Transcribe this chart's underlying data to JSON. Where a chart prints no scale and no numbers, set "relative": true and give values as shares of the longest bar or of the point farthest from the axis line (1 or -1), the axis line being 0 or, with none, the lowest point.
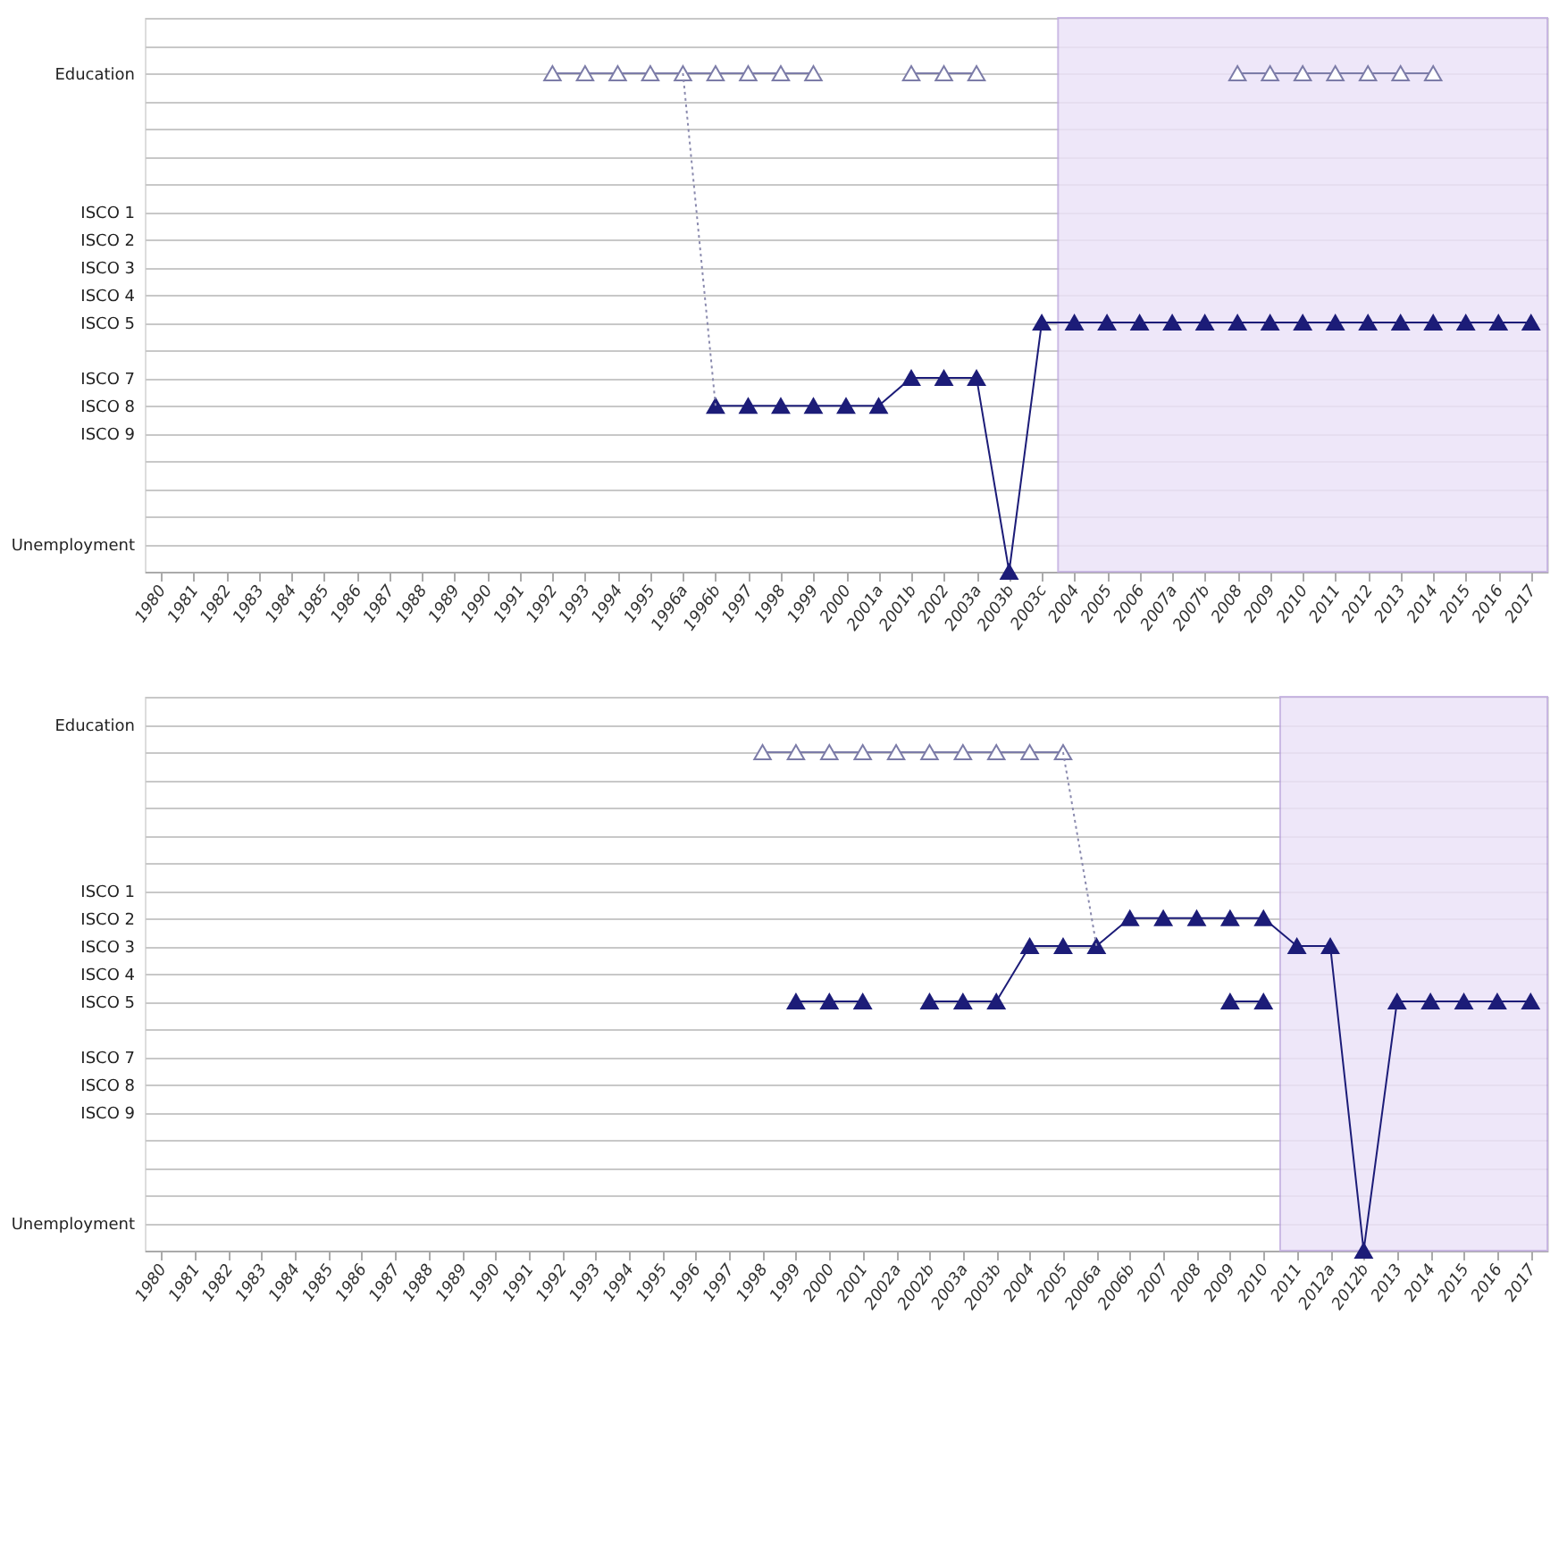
{
  "chart_data": [
    {
      "type": "line",
      "relative": true,
      "categories": [
        "1980",
        "1981",
        "1982",
        "1983",
        "1984",
        "1985",
        "1986",
        "1987",
        "1988",
        "1989",
        "1990",
        "1991",
        "1992",
        "1993",
        "1994",
        "1995",
        "1996a",
        "1996b",
        "1997",
        "1998",
        "1999",
        "2000",
        "2001a",
        "2001b",
        "2002",
        "2003a",
        "2003b",
        "2003c",
        "2004",
        "2005",
        "2006",
        "2007a",
        "2007b",
        "2008",
        "2009",
        "2010",
        "2011",
        "2012",
        "2013",
        "2014",
        "2015",
        "2016",
        "2017"
      ],
      "y_categories": [
        null,
        null,
        "Education",
        null,
        null,
        null,
        null,
        "ISCO 1",
        "ISCO 2",
        "ISCO 3",
        "ISCO 4",
        "ISCO 5",
        null,
        "ISCO 7",
        "ISCO 8",
        "ISCO 9",
        null,
        null,
        null,
        "Unemployment",
        null
      ],
      "grid": "y",
      "bands": [
        {
          "axis": "x",
          "from": "2004",
          "to": "2017",
          "color": "#ece3f8"
        }
      ],
      "series": [
        {
          "color": "#7c7ca8",
          "marker": "triangle-open",
          "values": [
            null,
            null,
            null,
            null,
            null,
            null,
            null,
            null,
            null,
            null,
            null,
            null,
            1,
            1,
            1,
            1,
            1,
            1,
            1,
            1,
            1,
            null,
            null,
            1,
            1,
            1,
            null,
            null,
            null,
            null,
            null,
            null,
            null,
            1,
            1,
            1,
            1,
            1,
            1,
            1,
            null,
            null,
            null
          ]
        },
        {
          "color": "#1c1c78",
          "marker": "triangle",
          "values": [
            null,
            null,
            null,
            null,
            null,
            null,
            null,
            null,
            null,
            null,
            null,
            null,
            null,
            null,
            null,
            null,
            null,
            0.333,
            0.333,
            0.333,
            0.333,
            0.333,
            0.333,
            0.389,
            0.389,
            0.389,
            0,
            0.5,
            0.5,
            0.5,
            0.5,
            0.5,
            0.5,
            0.5,
            0.5,
            0.5,
            0.5,
            0.5,
            0.5,
            0.5,
            0.5,
            0.5,
            0.5
          ]
        },
        {
          "color": "#8a8aae",
          "line_style": "dotted",
          "values": [
            null,
            null,
            null,
            null,
            null,
            null,
            null,
            null,
            null,
            null,
            null,
            null,
            null,
            null,
            null,
            null,
            1,
            0.333,
            null,
            null,
            null,
            null,
            null,
            null,
            null,
            null,
            null,
            null,
            null,
            null,
            null,
            null,
            null,
            null,
            null,
            null,
            null,
            null,
            null,
            null,
            null,
            null,
            null
          ]
        }
      ]
    },
    {
      "type": "line",
      "relative": true,
      "categories": [
        "1980",
        "1981",
        "1982",
        "1983",
        "1984",
        "1985",
        "1986",
        "1987",
        "1988",
        "1989",
        "1990",
        "1991",
        "1992",
        "1993",
        "1994",
        "1995",
        "1996",
        "1997",
        "1998",
        "1999",
        "2000",
        "2001",
        "2002a",
        "2002b",
        "2003a",
        "2003b",
        "2004",
        "2005",
        "2006a",
        "2006b",
        "2007",
        "2008",
        "2009",
        "2010",
        "2011",
        "2012a",
        "2012b",
        "2013",
        "2014",
        "2015",
        "2016",
        "2017"
      ],
      "y_categories": [
        null,
        "Education",
        null,
        null,
        null,
        null,
        null,
        "ISCO 1",
        "ISCO 2",
        "ISCO 3",
        "ISCO 4",
        "ISCO 5",
        null,
        "ISCO 7",
        "ISCO 8",
        "ISCO 9",
        null,
        null,
        null,
        "Unemployment",
        null
      ],
      "grid": "y",
      "bands": [
        {
          "axis": "x",
          "from": "2011",
          "to": "2017",
          "color": "#ece3f8"
        }
      ],
      "series": [
        {
          "color": "#7c7ca8",
          "marker": "triangle-open",
          "values": [
            null,
            null,
            null,
            null,
            null,
            null,
            null,
            null,
            null,
            null,
            null,
            null,
            null,
            null,
            null,
            null,
            null,
            null,
            1,
            1,
            1,
            1,
            1,
            1,
            1,
            1,
            1,
            1,
            null,
            null,
            null,
            null,
            null,
            null,
            null,
            null,
            null,
            null,
            null,
            null,
            null,
            null
          ]
        },
        {
          "color": "#1c1c78",
          "marker": "triangle",
          "values": [
            null,
            null,
            null,
            null,
            null,
            null,
            null,
            null,
            null,
            null,
            null,
            null,
            null,
            null,
            null,
            null,
            null,
            null,
            null,
            0.5,
            0.5,
            0.5,
            null,
            0.5,
            0.5,
            0.5,
            0.611,
            0.611,
            0.611,
            0.667,
            0.667,
            0.667,
            0.667,
            0.667,
            0.611,
            0.611,
            0,
            0.5,
            0.5,
            0.5,
            0.5,
            0.5
          ]
        },
        {
          "color": "#1c1c78",
          "marker": "triangle",
          "values": [
            null,
            null,
            null,
            null,
            null,
            null,
            null,
            null,
            null,
            null,
            null,
            null,
            null,
            null,
            null,
            null,
            null,
            null,
            null,
            null,
            null,
            null,
            null,
            null,
            null,
            null,
            null,
            null,
            null,
            null,
            null,
            null,
            0.5,
            0.5,
            null,
            null,
            null,
            null,
            null,
            null,
            null,
            null
          ]
        },
        {
          "color": "#8a8aae",
          "line_style": "dotted",
          "values": [
            null,
            null,
            null,
            null,
            null,
            null,
            null,
            null,
            null,
            null,
            null,
            null,
            null,
            null,
            null,
            null,
            null,
            null,
            null,
            null,
            null,
            null,
            null,
            null,
            null,
            null,
            null,
            1,
            0.611,
            null,
            null,
            null,
            null,
            null,
            null,
            null,
            null,
            null,
            null,
            null,
            null,
            null
          ]
        }
      ]
    }
  ]
}
